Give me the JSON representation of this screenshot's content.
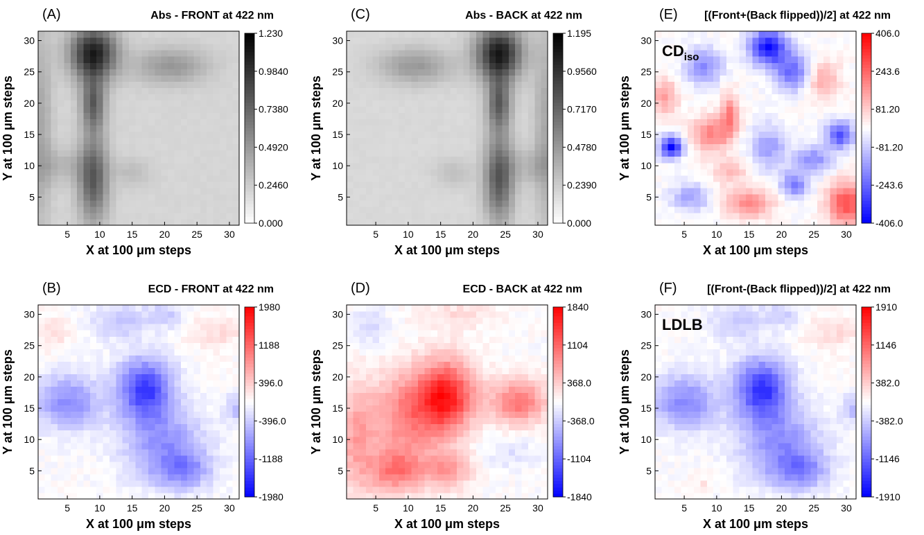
{
  "chart_data": [
    {
      "type": "heatmap",
      "panel_label": "(A)",
      "title": "Abs - FRONT at 422 nm",
      "inset_label": "",
      "xlabel": "X at 100 μm steps",
      "ylabel": "Y at 100 μm steps",
      "xlim": [
        0.5,
        31.5
      ],
      "ylim": [
        0.5,
        31.5
      ],
      "x_ticks": [
        "5",
        "10",
        "15",
        "20",
        "25",
        "30"
      ],
      "y_ticks": [
        "5",
        "10",
        "15",
        "20",
        "25",
        "30"
      ],
      "colormap": "grayscale",
      "colors": {
        "low": "#ffffff",
        "high": "#000000"
      },
      "colorbar_ticks": [
        "1.230",
        "0.9840",
        "0.7380",
        "0.4920",
        "0.2460",
        "0.000"
      ],
      "value_range": [
        0,
        1.23
      ],
      "features": [
        {
          "x": 9,
          "y": 28,
          "sx": 2.5,
          "sy": 3.0,
          "value": 0.9
        },
        {
          "x": 9,
          "y": 20,
          "sx": 1.3,
          "sy": 3.0,
          "value": 0.55
        },
        {
          "x": 9,
          "y": 8,
          "sx": 1.6,
          "sy": 5.0,
          "value": 0.6
        },
        {
          "x": 21,
          "y": 26,
          "sx": 4.0,
          "sy": 2.0,
          "value": 0.3
        },
        {
          "x": 4,
          "y": 10,
          "sx": 3.0,
          "sy": 2.0,
          "value": 0.15
        },
        {
          "x": 15,
          "y": 9,
          "sx": 2.0,
          "sy": 1.5,
          "value": 0.12
        },
        {
          "x": 1,
          "y": 16,
          "sx": 1.2,
          "sy": 12.0,
          "value": 0.22
        }
      ],
      "base_value": 0.2
    },
    {
      "type": "heatmap",
      "panel_label": "(B)",
      "title": "ECD - FRONT at 422 nm",
      "inset_label": "",
      "xlabel": "X at 100 μm steps",
      "ylabel": "Y at 100 μm steps",
      "xlim": [
        0.5,
        31.5
      ],
      "ylim": [
        0.5,
        31.5
      ],
      "x_ticks": [
        "5",
        "10",
        "15",
        "20",
        "25",
        "30"
      ],
      "y_ticks": [
        "5",
        "10",
        "15",
        "20",
        "25",
        "30"
      ],
      "colormap": "diverging",
      "colors": {
        "low": "#0000ff",
        "mid": "#ffffff",
        "high": "#ff0000"
      },
      "colorbar_ticks": [
        "1980",
        "1188",
        "396.0",
        "-396.0",
        "-1188",
        "-1980"
      ],
      "value_range": [
        -1980,
        1980
      ],
      "features": [
        {
          "x": 5,
          "y": 16,
          "sx": 3.5,
          "sy": 3.0,
          "value": -900
        },
        {
          "x": 17,
          "y": 18,
          "sx": 3.0,
          "sy": 3.5,
          "value": -1500
        },
        {
          "x": 20,
          "y": 9,
          "sx": 4.5,
          "sy": 4.0,
          "value": -800
        },
        {
          "x": 23,
          "y": 5,
          "sx": 3.0,
          "sy": 2.0,
          "value": -700
        },
        {
          "x": 13,
          "y": 29,
          "sx": 3.0,
          "sy": 2.0,
          "value": -450
        },
        {
          "x": 20,
          "y": 30,
          "sx": 2.0,
          "sy": 1.5,
          "value": -400
        },
        {
          "x": 28,
          "y": 27,
          "sx": 3.0,
          "sy": 2.0,
          "value": 250
        },
        {
          "x": 3,
          "y": 27,
          "sx": 2.0,
          "sy": 2.0,
          "value": 220
        },
        {
          "x": 31,
          "y": 15,
          "sx": 1.2,
          "sy": 1.5,
          "value": -500
        }
      ],
      "base_value": 0
    },
    {
      "type": "heatmap",
      "panel_label": "(C)",
      "title": "Abs - BACK at 422 nm",
      "inset_label": "",
      "xlabel": "X at 100 μm steps",
      "ylabel": "Y at 100 μm steps",
      "xlim": [
        0.5,
        31.5
      ],
      "ylim": [
        0.5,
        31.5
      ],
      "x_ticks": [
        "5",
        "10",
        "15",
        "20",
        "25",
        "30"
      ],
      "y_ticks": [
        "5",
        "10",
        "15",
        "20",
        "25",
        "30"
      ],
      "colormap": "grayscale",
      "colors": {
        "low": "#ffffff",
        "high": "#000000"
      },
      "colorbar_ticks": [
        "1.195",
        "0.9560",
        "0.7170",
        "0.4780",
        "0.2390",
        "0.000"
      ],
      "value_range": [
        0,
        1.195
      ],
      "features": [
        {
          "x": 24,
          "y": 28,
          "sx": 2.5,
          "sy": 3.0,
          "value": 0.9
        },
        {
          "x": 24,
          "y": 20,
          "sx": 1.3,
          "sy": 3.0,
          "value": 0.55
        },
        {
          "x": 24,
          "y": 8,
          "sx": 1.6,
          "sy": 5.0,
          "value": 0.6
        },
        {
          "x": 11,
          "y": 26,
          "sx": 4.0,
          "sy": 2.0,
          "value": 0.3
        },
        {
          "x": 29,
          "y": 10,
          "sx": 3.0,
          "sy": 2.0,
          "value": 0.15
        },
        {
          "x": 17,
          "y": 9,
          "sx": 2.0,
          "sy": 1.5,
          "value": 0.12
        },
        {
          "x": 31,
          "y": 16,
          "sx": 1.2,
          "sy": 12.0,
          "value": 0.22
        }
      ],
      "base_value": 0.18
    },
    {
      "type": "heatmap",
      "panel_label": "(D)",
      "title": "ECD - BACK at 422 nm",
      "inset_label": "",
      "xlabel": "X at 100 μm steps",
      "ylabel": "Y at 100 μm steps",
      "xlim": [
        0.5,
        31.5
      ],
      "ylim": [
        0.5,
        31.5
      ],
      "x_ticks": [
        "5",
        "10",
        "15",
        "20",
        "25",
        "30"
      ],
      "y_ticks": [
        "5",
        "10",
        "15",
        "20",
        "25",
        "30"
      ],
      "colormap": "diverging",
      "colors": {
        "low": "#0000ff",
        "mid": "#ffffff",
        "high": "#ff0000"
      },
      "colorbar_ticks": [
        "1840",
        "1104",
        "368.0",
        "-368.0",
        "-1104",
        "-1840"
      ],
      "value_range": [
        -1840,
        1840
      ],
      "features": [
        {
          "x": 16,
          "y": 17,
          "sx": 3.0,
          "sy": 4.0,
          "value": 1500
        },
        {
          "x": 10,
          "y": 14,
          "sx": 4.0,
          "sy": 5.0,
          "value": 900
        },
        {
          "x": 8,
          "y": 5,
          "sx": 3.0,
          "sy": 2.5,
          "value": 900
        },
        {
          "x": 16,
          "y": 5,
          "sx": 2.5,
          "sy": 2.0,
          "value": 700
        },
        {
          "x": 27,
          "y": 16,
          "sx": 3.0,
          "sy": 2.5,
          "value": 1000
        },
        {
          "x": 2,
          "y": 10,
          "sx": 2.0,
          "sy": 6.0,
          "value": 600
        },
        {
          "x": 4,
          "y": 28,
          "sx": 2.0,
          "sy": 2.0,
          "value": -300
        },
        {
          "x": 18,
          "y": 30,
          "sx": 4.0,
          "sy": 1.5,
          "value": 250
        },
        {
          "x": 26,
          "y": 8,
          "sx": 3.0,
          "sy": 2.0,
          "value": -200
        }
      ],
      "base_value": 0
    },
    {
      "type": "heatmap",
      "panel_label": "(E)",
      "title": "[(Front+(Back flipped))/2] at 422 nm",
      "inset_label": "CD",
      "inset_label_sub": "iso",
      "xlabel": "X at 100 μm steps",
      "ylabel": "Y at 100 μm steps",
      "xlim": [
        0.5,
        31.5
      ],
      "ylim": [
        0.5,
        31.5
      ],
      "x_ticks": [
        "5",
        "10",
        "15",
        "20",
        "25",
        "30"
      ],
      "y_ticks": [
        "5",
        "10",
        "15",
        "20",
        "25",
        "30"
      ],
      "colormap": "diverging",
      "colors": {
        "low": "#0000ff",
        "mid": "#ffffff",
        "high": "#ff0000"
      },
      "colorbar_ticks": [
        "406.0",
        "243.6",
        "81.20",
        "-81.20",
        "-243.6",
        "-406.0"
      ],
      "value_range": [
        -406,
        406
      ],
      "features": [
        {
          "x": 18,
          "y": 29,
          "sx": 2.0,
          "sy": 2.0,
          "value": -380
        },
        {
          "x": 3,
          "y": 13,
          "sx": 1.2,
          "sy": 1.2,
          "value": -400
        },
        {
          "x": 29,
          "y": 15,
          "sx": 1.5,
          "sy": 1.5,
          "value": -280
        },
        {
          "x": 9,
          "y": 15,
          "sx": 2.0,
          "sy": 2.0,
          "value": 200
        },
        {
          "x": 2,
          "y": 21,
          "sx": 1.5,
          "sy": 2.0,
          "value": 150
        },
        {
          "x": 30,
          "y": 4,
          "sx": 2.0,
          "sy": 2.5,
          "value": 280
        },
        {
          "x": 15,
          "y": 4,
          "sx": 2.5,
          "sy": 1.5,
          "value": 200
        },
        {
          "x": 22,
          "y": 25,
          "sx": 2.0,
          "sy": 2.0,
          "value": -250
        },
        {
          "x": 26,
          "y": 24,
          "sx": 2.0,
          "sy": 2.0,
          "value": 150
        },
        {
          "x": 8,
          "y": 26,
          "sx": 2.0,
          "sy": 2.0,
          "value": -180
        },
        {
          "x": 18,
          "y": 13,
          "sx": 2.0,
          "sy": 2.5,
          "value": -150
        },
        {
          "x": 25,
          "y": 11,
          "sx": 2.0,
          "sy": 1.5,
          "value": -180
        },
        {
          "x": 12,
          "y": 9,
          "sx": 2.0,
          "sy": 1.5,
          "value": 100
        },
        {
          "x": 22,
          "y": 7,
          "sx": 1.5,
          "sy": 1.5,
          "value": -200
        },
        {
          "x": 6,
          "y": 5,
          "sx": 2.0,
          "sy": 1.5,
          "value": -150
        },
        {
          "x": 12,
          "y": 18,
          "sx": 1.0,
          "sy": 2.5,
          "value": 200
        }
      ],
      "base_value": 0
    },
    {
      "type": "heatmap",
      "panel_label": "(F)",
      "title": "[(Front-(Back flipped))/2] at 422 nm",
      "inset_label": "LDLB",
      "inset_label_sub": "",
      "xlabel": "X at 100 μm steps",
      "ylabel": "Y at 100 μm steps",
      "xlim": [
        0.5,
        31.5
      ],
      "ylim": [
        0.5,
        31.5
      ],
      "x_ticks": [
        "5",
        "10",
        "15",
        "20",
        "25",
        "30"
      ],
      "y_ticks": [
        "5",
        "10",
        "15",
        "20",
        "25",
        "30"
      ],
      "colormap": "diverging",
      "colors": {
        "low": "#0000ff",
        "mid": "#ffffff",
        "high": "#ff0000"
      },
      "colorbar_ticks": [
        "1910",
        "1146",
        "382.0",
        "-382.0",
        "-1146",
        "-1910"
      ],
      "value_range": [
        -1910,
        1910
      ],
      "features": [
        {
          "x": 5,
          "y": 16,
          "sx": 3.5,
          "sy": 3.0,
          "value": -900
        },
        {
          "x": 17,
          "y": 18,
          "sx": 3.0,
          "sy": 3.5,
          "value": -1500
        },
        {
          "x": 20,
          "y": 9,
          "sx": 4.5,
          "sy": 4.0,
          "value": -800
        },
        {
          "x": 23,
          "y": 5,
          "sx": 3.0,
          "sy": 2.0,
          "value": -700
        },
        {
          "x": 13,
          "y": 29,
          "sx": 3.0,
          "sy": 2.0,
          "value": -400
        },
        {
          "x": 20,
          "y": 30,
          "sx": 2.0,
          "sy": 1.5,
          "value": -350
        },
        {
          "x": 28,
          "y": 27,
          "sx": 3.0,
          "sy": 2.0,
          "value": 250
        },
        {
          "x": 8,
          "y": 3,
          "sx": 1.0,
          "sy": 1.0,
          "value": 200
        },
        {
          "x": 31,
          "y": 15,
          "sx": 1.2,
          "sy": 1.5,
          "value": -500
        }
      ],
      "base_value": 0
    }
  ]
}
